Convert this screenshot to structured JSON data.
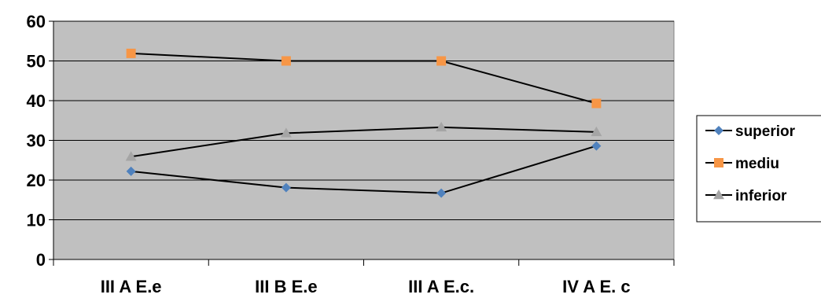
{
  "chart_data": {
    "type": "line",
    "categories": [
      "III A E.e",
      "III B E.e",
      "III A E.c.",
      "IV A E. c"
    ],
    "series": [
      {
        "name": "superior",
        "values": [
          22.2,
          18.1,
          16.7,
          28.6
        ],
        "color": "#4f81bd",
        "marker": "diamond"
      },
      {
        "name": "mediu",
        "values": [
          51.9,
          50.0,
          50.0,
          39.3
        ],
        "color": "#f79646",
        "marker": "square"
      },
      {
        "name": "inferior",
        "values": [
          25.9,
          31.8,
          33.3,
          32.1
        ],
        "color": "#a5a5a5",
        "marker": "triangle"
      }
    ],
    "line_color": "#000000",
    "plot_background": "#c0c0c0",
    "ylim": [
      0,
      60
    ],
    "yticks": [
      "0",
      "10",
      "20",
      "30",
      "40",
      "50",
      "60"
    ],
    "grid": true,
    "legend_position": "right",
    "title": "",
    "xlabel": "",
    "ylabel": ""
  }
}
